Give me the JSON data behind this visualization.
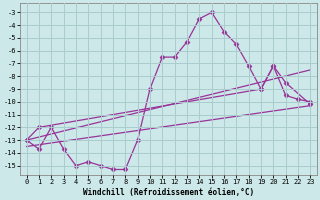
{
  "xlabel": "Windchill (Refroidissement éolien,°C)",
  "background_color": "#cce8e8",
  "grid_color": "#aacccc",
  "line_color": "#993399",
  "xlim": [
    -0.5,
    23.5
  ],
  "ylim": [
    -15.7,
    -2.3
  ],
  "yticks": [
    -15,
    -14,
    -13,
    -12,
    -11,
    -10,
    -9,
    -8,
    -7,
    -6,
    -5,
    -4,
    -3
  ],
  "xticks": [
    0,
    1,
    2,
    3,
    4,
    5,
    6,
    7,
    8,
    9,
    10,
    11,
    12,
    13,
    14,
    15,
    16,
    17,
    18,
    19,
    20,
    21,
    22,
    23
  ],
  "series": [
    {
      "x": [
        0,
        1,
        2,
        3,
        4,
        5,
        6,
        7,
        8,
        9,
        10,
        11,
        12,
        13,
        14,
        15,
        16,
        17,
        18,
        19,
        20,
        21,
        22,
        23
      ],
      "y": [
        -13.0,
        -13.7,
        -12.0,
        -13.7,
        -15.0,
        -14.7,
        -15.0,
        -15.3,
        -15.3,
        -13.0,
        -9.0,
        -6.5,
        -6.5,
        -5.3,
        -3.5,
        -3.0,
        -4.5,
        -5.5,
        -7.2,
        -9.0,
        -7.2,
        -9.5,
        -9.8,
        -10.0
      ],
      "marker": "D",
      "markersize": 2.5,
      "linewidth": 0.9
    },
    {
      "x": [
        0,
        23
      ],
      "y": [
        -13.0,
        -7.5
      ],
      "marker": null,
      "markersize": 0,
      "linewidth": 0.9
    },
    {
      "x": [
        0,
        1,
        19,
        20,
        21,
        23
      ],
      "y": [
        -13.0,
        -12.0,
        -9.0,
        -7.2,
        -8.5,
        -10.2
      ],
      "marker": "D",
      "markersize": 2.5,
      "linewidth": 0.9
    },
    {
      "x": [
        0,
        23
      ],
      "y": [
        -13.5,
        -10.3
      ],
      "marker": null,
      "markersize": 0,
      "linewidth": 0.9
    }
  ]
}
